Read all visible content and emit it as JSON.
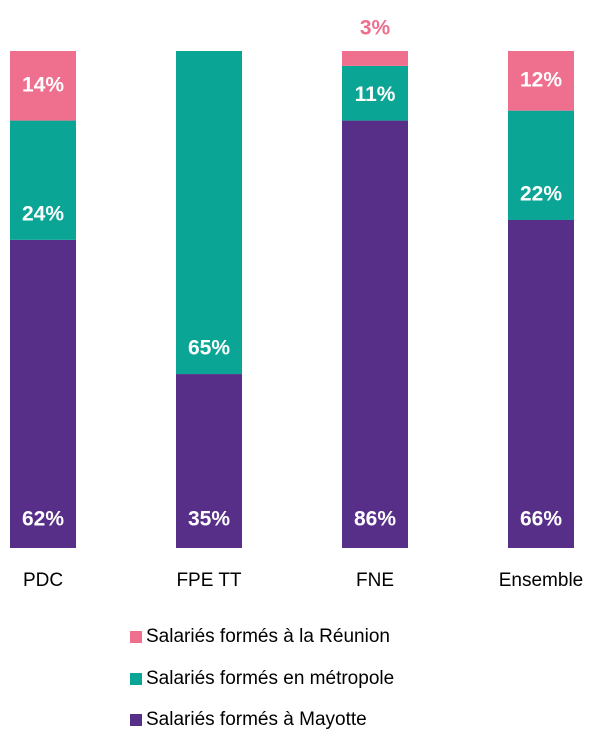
{
  "chart_data": {
    "type": "stacked_bar",
    "categories": [
      "PDC",
      "FPE TT",
      "FNE",
      "Ensemble"
    ],
    "ylim": [
      0,
      100
    ],
    "series": [
      {
        "name": "Salariés formés à Mayotte",
        "color": "#582f88",
        "values": [
          62,
          35,
          86,
          66
        ],
        "value_labels": [
          "62%",
          "35%",
          "86%",
          "66%"
        ]
      },
      {
        "name": "Salariés formés en métropole",
        "color": "#0ba596",
        "values": [
          24,
          65,
          11,
          22
        ],
        "value_labels": [
          "24%",
          "65%",
          "11%",
          "22%"
        ]
      },
      {
        "name": "Salariés formés à la Réunion",
        "color": "#ee6f8e",
        "values": [
          14,
          null,
          3,
          12
        ],
        "value_labels": [
          "14%",
          null,
          "3%",
          "12%"
        ]
      }
    ]
  }
}
